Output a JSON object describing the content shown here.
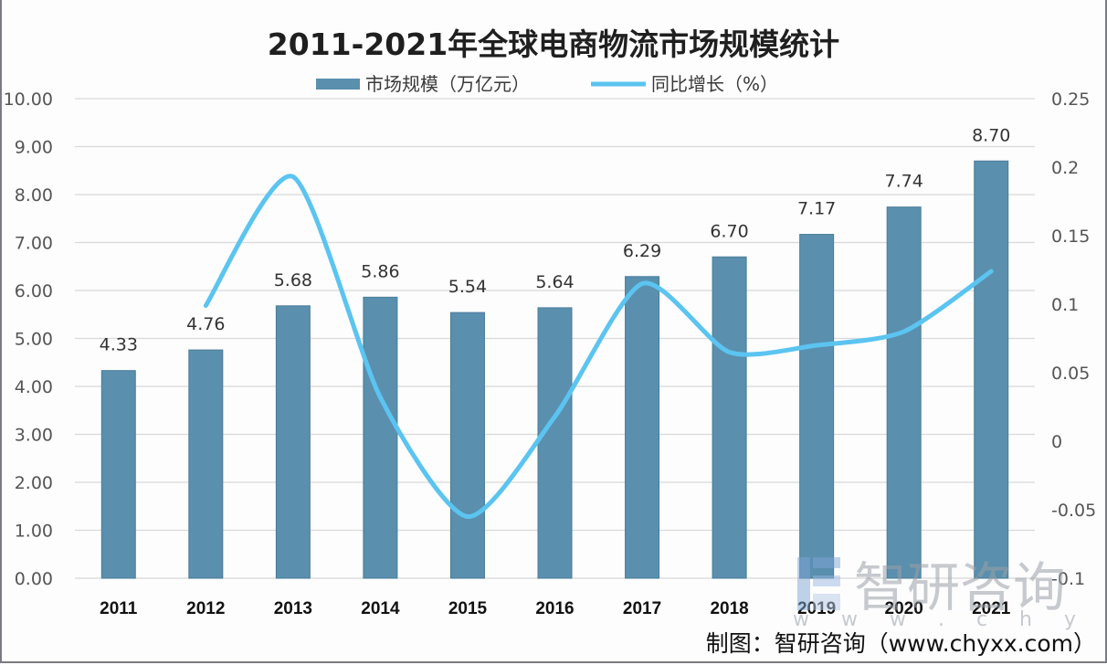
{
  "chart_data": {
    "type": "bar+line",
    "title": "2011-2021年全球电商物流市场规模统计",
    "categories": [
      "2011",
      "2012",
      "2013",
      "2014",
      "2015",
      "2016",
      "2017",
      "2018",
      "2019",
      "2020",
      "2021"
    ],
    "series": [
      {
        "name": "市场规模（万亿元）",
        "type": "bar",
        "axis": "left",
        "color": "#5a8fae",
        "values": [
          4.33,
          4.76,
          5.68,
          5.86,
          5.54,
          5.64,
          6.29,
          6.7,
          7.17,
          7.74,
          8.7
        ],
        "labels": [
          "4.33",
          "4.76",
          "5.68",
          "5.86",
          "5.54",
          "5.64",
          "6.29",
          "6.70",
          "7.17",
          "7.74",
          "8.70"
        ]
      },
      {
        "name": "同比增长（%）",
        "type": "line",
        "axis": "right",
        "color": "#5bc4f0",
        "values": [
          null,
          0.099,
          0.193,
          0.032,
          -0.055,
          0.018,
          0.115,
          0.065,
          0.07,
          0.08,
          0.124
        ]
      }
    ],
    "y_left": {
      "ylim": [
        0,
        10
      ],
      "ticks": [
        "0.00",
        "1.00",
        "2.00",
        "3.00",
        "4.00",
        "5.00",
        "6.00",
        "7.00",
        "8.00",
        "9.00",
        "10.00"
      ]
    },
    "y_right": {
      "ylim": [
        -0.1,
        0.25
      ],
      "ticks": [
        "-0.1",
        "-0.05",
        "0",
        "0.05",
        "0.1",
        "0.15",
        "0.2",
        "0.25"
      ]
    },
    "xlabel": "",
    "ylabel": "",
    "grid": true,
    "legend": "top-center"
  },
  "watermark": {
    "brand": "智研咨询",
    "url": "w w w . c h y x x . c o m"
  },
  "source": "制图：智研咨询（www.chyxx.com）"
}
